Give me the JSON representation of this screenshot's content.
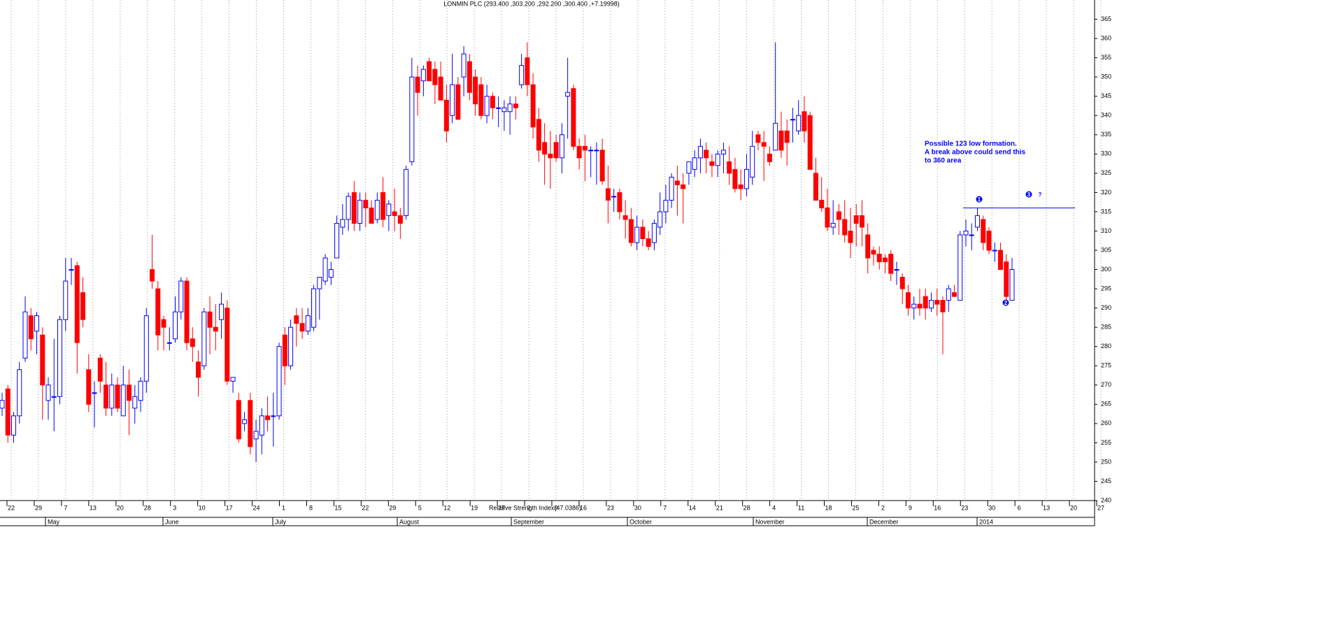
{
  "chart_data": {
    "type": "candlestick",
    "title": "LONMIN PLC (293.400 ,303.200 ,292.200 ,300.400 ,+7.19998)",
    "indicator_label": "Relative Strength Index(47.0386)",
    "annotation": [
      "Possible 123 low formation.",
      "A break above could send this",
      "to 360 area"
    ],
    "pattern_markers": [
      "1",
      "2",
      "3",
      "?"
    ],
    "resistance_level": 316,
    "categories": [
      "22",
      "29",
      "7",
      "13",
      "20",
      "28",
      "3",
      "10",
      "17",
      "24",
      "1",
      "8",
      "15",
      "22",
      "29",
      "5",
      "12",
      "19",
      "27",
      "2",
      "9",
      "16",
      "23",
      "30",
      "7",
      "14",
      "21",
      "28",
      "4",
      "11",
      "18",
      "25",
      "2",
      "9",
      "16",
      "23",
      "30",
      "6",
      "13",
      "20",
      "27"
    ],
    "months": [
      "May",
      "June",
      "July",
      "August",
      "September",
      "October",
      "November",
      "December",
      "2014"
    ],
    "up_color": "#0000ff",
    "down_color": "#ff0000",
    "ylim": [
      240,
      370
    ],
    "yticks": [
      240,
      245,
      250,
      255,
      260,
      265,
      270,
      275,
      280,
      285,
      290,
      295,
      300,
      305,
      310,
      315,
      320,
      325,
      330,
      335,
      340,
      345,
      350,
      355,
      360,
      365
    ],
    "grid": true,
    "series": [
      {
        "name": "LONMIN PLC",
        "values": [
          [
            264,
            268,
            262,
            266
          ],
          [
            269,
            270,
            255,
            257
          ],
          [
            257,
            263,
            255,
            262
          ],
          [
            262,
            276,
            260,
            274
          ],
          [
            277,
            293,
            276,
            289
          ],
          [
            288,
            290,
            279,
            282
          ],
          [
            284,
            289,
            278,
            288
          ],
          [
            283,
            285,
            261,
            270
          ],
          [
            266,
            272,
            261,
            270
          ],
          [
            267,
            282,
            258,
            267
          ],
          [
            267,
            288,
            265,
            287
          ],
          [
            287,
            303,
            284,
            297
          ],
          [
            300,
            303,
            296,
            300
          ],
          [
            301,
            302,
            273,
            281
          ],
          [
            294,
            298,
            285,
            287
          ],
          [
            274,
            278,
            263,
            265
          ],
          [
            268,
            271,
            259,
            268
          ],
          [
            277,
            278,
            268,
            271
          ],
          [
            270,
            276,
            262,
            264
          ],
          [
            264,
            273,
            262,
            270
          ],
          [
            270,
            272,
            263,
            264
          ],
          [
            262,
            275,
            262,
            270
          ],
          [
            270,
            274,
            257,
            266
          ],
          [
            264,
            270,
            260,
            267
          ],
          [
            266,
            272,
            263,
            271
          ],
          [
            271,
            290,
            268,
            288
          ],
          [
            300,
            309,
            295,
            297
          ],
          [
            295,
            297,
            279,
            283
          ],
          [
            287,
            288,
            279,
            285
          ],
          [
            281,
            285,
            279,
            281
          ],
          [
            282,
            293,
            281,
            289
          ],
          [
            289,
            298,
            287,
            297
          ],
          [
            297,
            298,
            279,
            281
          ],
          [
            282,
            285,
            276,
            280
          ],
          [
            276,
            279,
            267,
            272
          ],
          [
            275,
            290,
            274,
            289
          ],
          [
            289,
            293,
            278,
            285
          ],
          [
            285,
            291,
            279,
            284
          ],
          [
            287,
            294,
            282,
            291
          ],
          [
            290,
            292,
            270,
            271
          ],
          [
            271,
            272,
            268,
            272
          ],
          [
            266,
            268,
            255,
            256
          ],
          [
            260,
            263,
            258,
            261
          ],
          [
            266,
            268,
            252,
            254
          ],
          [
            256,
            261,
            250,
            258
          ],
          [
            257,
            264,
            252,
            262
          ],
          [
            262,
            267,
            258,
            261
          ],
          [
            262,
            268,
            254,
            262
          ],
          [
            262,
            281,
            261,
            280
          ],
          [
            283,
            285,
            270,
            275
          ],
          [
            275,
            287,
            274,
            285
          ],
          [
            288,
            290,
            280,
            286
          ],
          [
            286,
            290,
            282,
            284
          ],
          [
            284,
            290,
            283,
            288
          ],
          [
            285,
            296,
            284,
            295
          ],
          [
            295,
            298,
            287,
            298
          ],
          [
            297,
            304,
            296,
            303
          ],
          [
            298,
            302,
            296,
            300
          ],
          [
            303,
            314,
            303,
            312
          ],
          [
            311,
            317,
            309,
            313
          ],
          [
            313,
            320,
            310,
            319
          ],
          [
            320,
            323,
            310,
            312
          ],
          [
            312,
            320,
            310,
            318
          ],
          [
            318,
            320,
            311,
            316
          ],
          [
            316,
            318,
            312,
            312
          ],
          [
            313,
            320,
            312,
            318
          ],
          [
            320,
            324,
            311,
            313
          ],
          [
            314,
            318,
            310,
            317
          ],
          [
            315,
            321,
            310,
            314
          ],
          [
            314,
            316,
            308,
            312
          ],
          [
            314,
            327,
            313,
            326
          ],
          [
            328,
            355,
            327,
            350
          ],
          [
            350,
            353,
            340,
            346
          ],
          [
            349,
            353,
            345,
            352
          ],
          [
            354,
            355,
            349,
            349
          ],
          [
            352,
            354,
            343,
            348
          ],
          [
            350,
            354,
            344,
            344
          ],
          [
            344,
            348,
            333,
            336
          ],
          [
            340,
            356,
            338,
            348
          ],
          [
            348,
            350,
            339,
            339
          ],
          [
            350,
            358,
            345,
            356
          ],
          [
            354,
            356,
            344,
            346
          ],
          [
            350,
            352,
            340,
            343
          ],
          [
            348,
            350,
            339,
            340
          ],
          [
            340,
            348,
            338,
            345
          ],
          [
            345,
            346,
            339,
            342
          ],
          [
            342,
            345,
            337,
            342
          ],
          [
            341,
            344,
            336,
            342
          ],
          [
            341,
            345,
            335,
            343
          ],
          [
            343,
            345,
            339,
            342
          ],
          [
            348,
            356,
            347,
            353
          ],
          [
            355,
            359,
            345,
            348
          ],
          [
            348,
            351,
            334,
            337
          ],
          [
            339,
            342,
            328,
            331
          ],
          [
            333,
            338,
            322,
            330
          ],
          [
            330,
            336,
            321,
            329
          ],
          [
            333,
            335,
            328,
            329
          ],
          [
            329,
            338,
            325,
            335
          ],
          [
            345,
            355,
            334,
            346
          ],
          [
            347,
            348,
            331,
            332
          ],
          [
            332,
            334,
            326,
            329
          ],
          [
            332,
            335,
            323,
            331
          ],
          [
            331,
            332,
            324,
            331
          ],
          [
            331,
            333,
            322,
            331
          ],
          [
            331,
            334,
            322,
            323
          ],
          [
            321,
            327,
            312,
            318
          ],
          [
            319,
            321,
            315,
            319
          ],
          [
            320,
            321,
            313,
            315
          ],
          [
            314,
            318,
            308,
            313
          ],
          [
            313,
            316,
            306,
            307
          ],
          [
            307,
            314,
            305,
            311
          ],
          [
            311,
            313,
            306,
            308
          ],
          [
            308,
            310,
            305,
            306
          ],
          [
            307,
            313,
            305,
            312
          ],
          [
            311,
            320,
            309,
            315
          ],
          [
            315,
            322,
            312,
            318
          ],
          [
            318,
            325,
            316,
            324
          ],
          [
            323,
            327,
            314,
            322
          ],
          [
            322,
            325,
            312,
            321
          ],
          [
            325,
            328,
            322,
            328
          ],
          [
            326,
            331,
            324,
            329
          ],
          [
            329,
            334,
            325,
            332
          ],
          [
            331,
            333,
            325,
            329
          ],
          [
            328,
            330,
            324,
            327
          ],
          [
            327,
            331,
            324,
            330
          ],
          [
            330,
            333,
            325,
            331
          ],
          [
            328,
            332,
            322,
            325
          ],
          [
            326,
            329,
            320,
            321
          ],
          [
            322,
            326,
            318,
            321
          ],
          [
            321,
            330,
            319,
            326
          ],
          [
            324,
            336,
            322,
            332
          ],
          [
            335,
            336,
            331,
            333
          ],
          [
            333,
            336,
            323,
            332
          ],
          [
            330,
            332,
            327,
            328
          ],
          [
            331,
            359,
            331,
            338
          ],
          [
            336,
            341,
            329,
            331
          ],
          [
            336,
            339,
            327,
            333
          ],
          [
            339,
            342,
            333,
            339
          ],
          [
            336,
            344,
            335,
            340
          ],
          [
            341,
            345,
            333,
            336
          ],
          [
            340,
            341,
            326,
            326
          ],
          [
            325,
            329,
            318,
            318
          ],
          [
            318,
            324,
            315,
            316
          ],
          [
            316,
            321,
            310,
            311
          ],
          [
            311,
            318,
            309,
            312
          ],
          [
            315,
            317,
            309,
            313
          ],
          [
            313,
            318,
            307,
            309
          ],
          [
            310,
            316,
            303,
            307
          ],
          [
            314,
            317,
            306,
            312
          ],
          [
            314,
            318,
            306,
            311
          ],
          [
            309,
            312,
            299,
            303
          ],
          [
            305,
            306,
            301,
            304
          ],
          [
            304,
            306,
            300,
            302
          ],
          [
            303,
            304,
            299,
            302
          ],
          [
            304,
            305,
            297,
            299
          ],
          [
            300,
            302,
            296,
            300
          ],
          [
            298,
            299,
            291,
            295
          ],
          [
            294,
            296,
            288,
            290
          ],
          [
            290,
            293,
            287,
            291
          ],
          [
            291,
            295,
            288,
            290
          ],
          [
            293,
            295,
            287,
            290
          ],
          [
            290,
            294,
            289,
            292
          ],
          [
            292,
            295,
            288,
            291
          ],
          [
            292,
            293,
            278,
            289
          ],
          [
            292,
            296,
            289,
            295
          ],
          [
            294,
            296,
            293,
            293
          ],
          [
            292,
            310,
            292,
            309
          ],
          [
            309,
            313,
            306,
            310
          ],
          [
            309,
            312,
            305,
            309
          ],
          [
            311,
            316,
            310,
            314
          ],
          [
            313,
            314,
            305,
            307
          ],
          [
            310,
            311,
            304,
            305
          ],
          [
            305,
            307,
            302,
            305
          ],
          [
            305,
            307,
            300,
            300
          ],
          [
            302,
            304,
            292,
            293
          ],
          [
            292,
            303,
            292,
            300
          ]
        ]
      }
    ]
  }
}
